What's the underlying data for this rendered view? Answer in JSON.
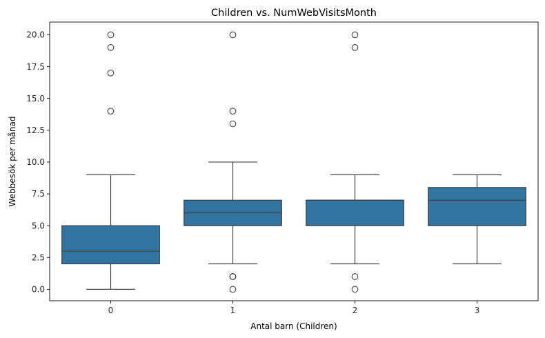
{
  "chart_data": {
    "type": "box",
    "title": "Children vs. NumWebVisitsMonth",
    "xlabel": "Antal barn (Children)",
    "ylabel": "Webbesök per månad",
    "categories": [
      "0",
      "1",
      "2",
      "3"
    ],
    "ylim": [
      -0.9,
      21.0
    ],
    "yticks": [
      0.0,
      2.5,
      5.0,
      7.5,
      10.0,
      12.5,
      15.0,
      17.5,
      20.0
    ],
    "ytick_labels": [
      "0.0",
      "2.5",
      "5.0",
      "7.5",
      "10.0",
      "12.5",
      "15.0",
      "17.5",
      "20.0"
    ],
    "grid": false,
    "box_color": "#3274a1",
    "line_color": "#3f3f3f",
    "boxes": [
      {
        "category": "0",
        "whisker_low": 0,
        "q1": 2,
        "median": 3,
        "q3": 5,
        "whisker_high": 9,
        "outliers": [
          14,
          17,
          19,
          20
        ]
      },
      {
        "category": "1",
        "whisker_low": 2,
        "q1": 5,
        "median": 6,
        "q3": 7,
        "whisker_high": 10,
        "outliers": [
          0,
          1,
          1,
          1,
          13,
          14,
          20
        ]
      },
      {
        "category": "2",
        "whisker_low": 2,
        "q1": 5,
        "median": 7,
        "q3": 7,
        "whisker_high": 9,
        "outliers": [
          0,
          1,
          19,
          20
        ]
      },
      {
        "category": "3",
        "whisker_low": 2,
        "q1": 5,
        "median": 7,
        "q3": 8,
        "whisker_high": 9,
        "outliers": []
      }
    ]
  }
}
